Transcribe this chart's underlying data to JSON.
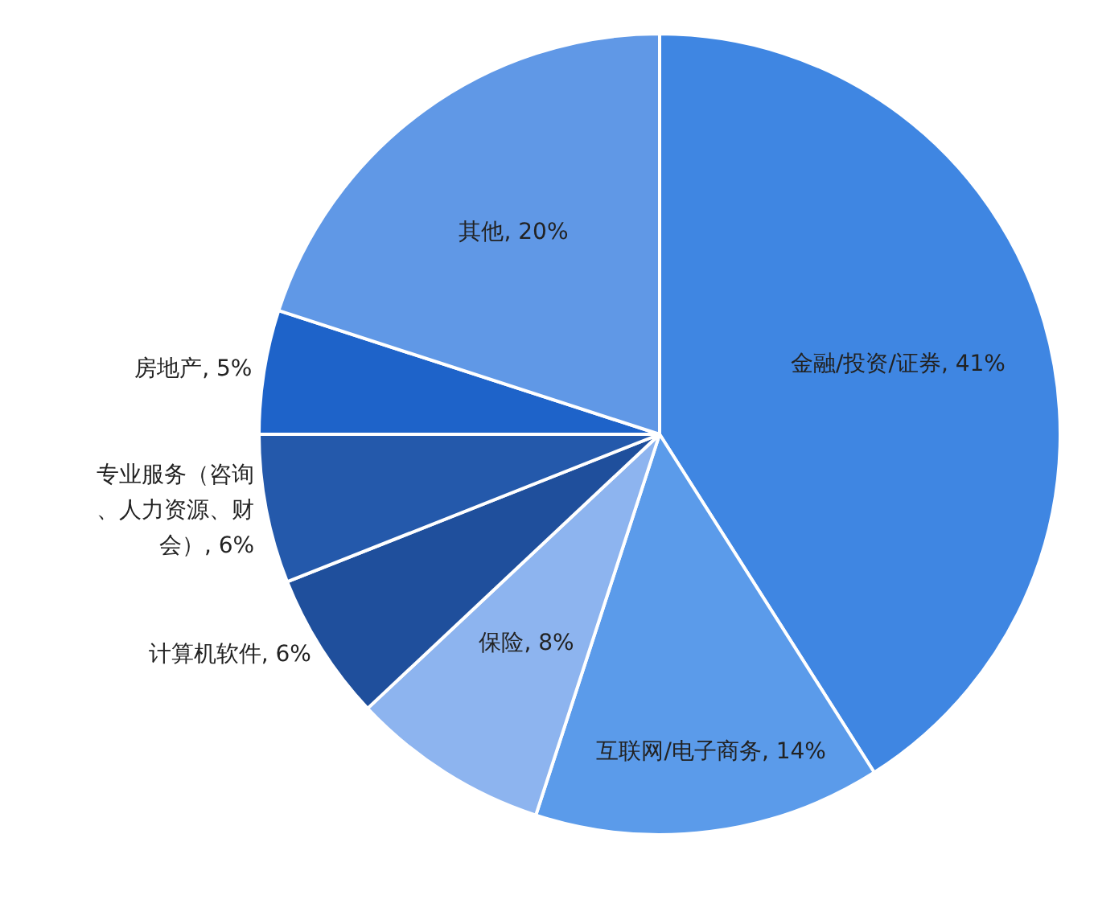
{
  "chart_data": {
    "type": "pie",
    "categories": [
      "金融/投资/证券",
      "互联网/电子商务",
      "保险",
      "计算机软件",
      "专业服务（咨询、人力资源、财会）",
      "房地产",
      "其他"
    ],
    "value_labels": [
      "41%",
      "14%",
      "8%",
      "6%",
      "6%",
      "5%",
      "20%"
    ],
    "values": [
      41,
      14,
      8,
      6,
      6,
      5,
      20
    ],
    "colors": [
      "#3f86e2",
      "#5b9bea",
      "#8db4ef",
      "#1f4f9c",
      "#2459ab",
      "#1e63c9",
      "#6098e6"
    ],
    "legend": false
  }
}
